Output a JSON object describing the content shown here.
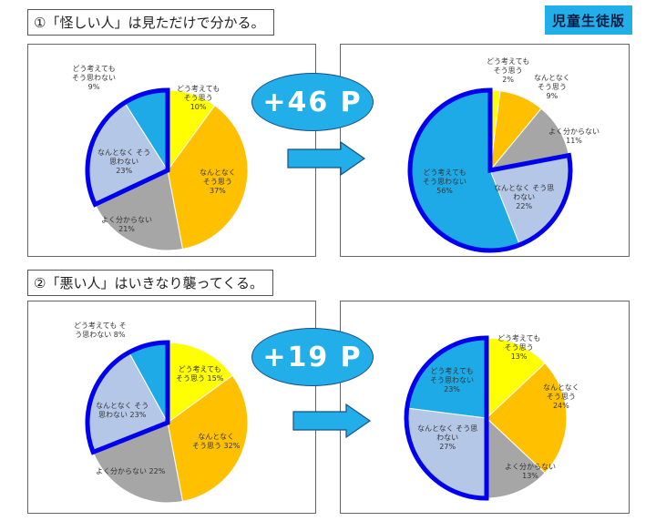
{
  "badge": {
    "label": "児童生徒版",
    "color": "#22aee8"
  },
  "sections": [
    {
      "title": "①「怪しい人」は見ただけで分かる。",
      "change_label": "+46 P",
      "before": {
        "labels": {
          "strongly_yes": [
            "どう考えても",
            "そう思う",
            "10%"
          ],
          "somewhat_yes": [
            "なんとなく",
            "そう思う",
            "37%"
          ],
          "unsure": [
            "よく分からない",
            "21%"
          ],
          "somewhat_no": [
            "なんとなく そう",
            "思わない",
            "23%"
          ],
          "strongly_no": [
            "どう考えても",
            "そう思わない",
            "9%"
          ]
        }
      },
      "after": {
        "labels": {
          "strongly_yes": [
            "どう考えても",
            "そう思う",
            "2%"
          ],
          "somewhat_yes": [
            "なんとなく",
            "そう思う",
            "9%"
          ],
          "unsure": [
            "よく分からない",
            "11%"
          ],
          "somewhat_no": [
            "なんとなく そう思",
            "わない",
            "22%"
          ],
          "strongly_no": [
            "どう考えても",
            "そう思わない",
            "56%"
          ]
        }
      }
    },
    {
      "title": "②「悪い人」はいきなり襲ってくる。",
      "change_label": "+19 P",
      "before": {
        "labels": {
          "strongly_yes": [
            "どう考えても",
            "そう思う 15%"
          ],
          "somewhat_yes": [
            "なんとなく",
            "そう思う 32%"
          ],
          "unsure": [
            "よく分からない 22%"
          ],
          "somewhat_no": [
            "なんとなく そう",
            "思わない 23%"
          ],
          "strongly_no": [
            "どう考えても そ",
            "う思わない 8%"
          ]
        }
      },
      "after": {
        "labels": {
          "strongly_yes": [
            "どう考えても",
            "そう思う",
            "13%"
          ],
          "somewhat_yes": [
            "なんとなく",
            "そう思う",
            "24%"
          ],
          "unsure": [
            "よく分からない",
            "13%"
          ],
          "somewhat_no": [
            "なんとなく そう思",
            "わない",
            "27%"
          ],
          "strongly_no": [
            "どう考えても",
            "そう思わない",
            "23%"
          ]
        }
      }
    }
  ],
  "colors": {
    "strongly_yes": "#ffff00",
    "somewhat_yes": "#ffc000",
    "unsure": "#a6a6a6",
    "somewhat_no": "#b4c7e7",
    "strongly_no": "#1eaae6",
    "highlight_border": "#0000ee"
  },
  "chart_data": [
    {
      "type": "pie",
      "title": "①「怪しい人」は見ただけで分かる。(事前)",
      "categories": [
        "どう考えても そう思う",
        "なんとなく そう思う",
        "よく分からない",
        "なんとなく そう思わない",
        "どう考えても そう思わない"
      ],
      "values": [
        10,
        37,
        21,
        23,
        9
      ],
      "highlighted": [
        "なんとなく そう思わない",
        "どう考えても そう思わない"
      ]
    },
    {
      "type": "pie",
      "title": "①「怪しい人」は見ただけで分かる。(事後)",
      "categories": [
        "どう考えても そう思う",
        "なんとなく そう思う",
        "よく分からない",
        "なんとなく そう思わない",
        "どう考えても そう思わない"
      ],
      "values": [
        2,
        9,
        11,
        22,
        56
      ],
      "highlighted": [
        "なんとなく そう思わない",
        "どう考えても そう思わない"
      ],
      "annotation": "+46 P"
    },
    {
      "type": "pie",
      "title": "②「悪い人」はいきなり襲ってくる。(事前)",
      "categories": [
        "どう考えても そう思う",
        "なんとなく そう思う",
        "よく分からない",
        "なんとなく そう思わない",
        "どう考えても そう思わない"
      ],
      "values": [
        15,
        32,
        22,
        23,
        8
      ],
      "highlighted": [
        "なんとなく そう思わない",
        "どう考えても そう思わない"
      ]
    },
    {
      "type": "pie",
      "title": "②「悪い人」はいきなり襲ってくる。(事後)",
      "categories": [
        "どう考えても そう思う",
        "なんとなく そう思う",
        "よく分からない",
        "なんとなく そう思わない",
        "どう考えても そう思わない"
      ],
      "values": [
        13,
        24,
        13,
        27,
        23
      ],
      "highlighted": [
        "なんとなく そう思わない",
        "どう考えても そう思わない"
      ],
      "annotation": "+19 P"
    }
  ]
}
